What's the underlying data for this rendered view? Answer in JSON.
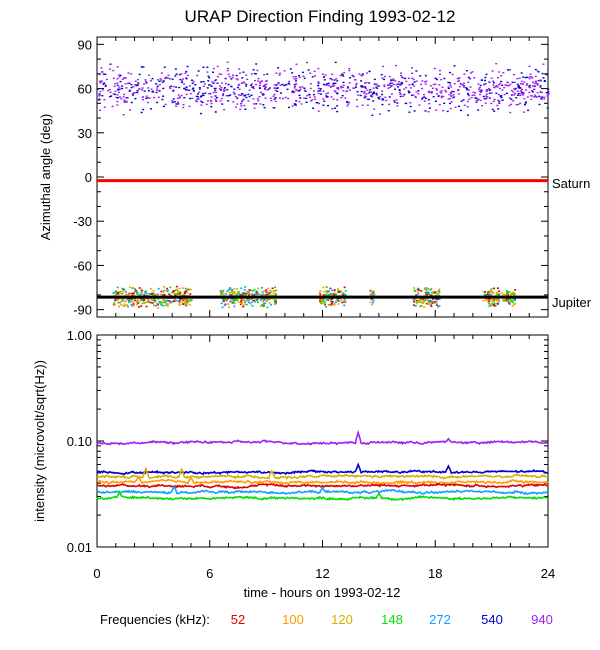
{
  "title": "URAP Direction Finding  1993-02-12",
  "chart_data": [
    {
      "name": "azimuth",
      "type": "scatter",
      "ylabel": "Azimuthal angle (deg)",
      "ylim": [
        -95,
        95
      ],
      "xlim": [
        0,
        24
      ],
      "yticks": [
        {
          "v": 90,
          "label": "90"
        },
        {
          "v": 60,
          "label": "60"
        },
        {
          "v": 30,
          "label": "30"
        },
        {
          "v": 0,
          "label": "0"
        },
        {
          "v": -30,
          "label": "-30"
        },
        {
          "v": -60,
          "label": "-60"
        },
        {
          "v": -90,
          "label": "-90"
        }
      ],
      "reference_lines": [
        {
          "label": "Saturn",
          "value": -2.5,
          "color": "#ff0000"
        },
        {
          "label": "Jupiter",
          "value": -81.5,
          "color": "#000000"
        }
      ],
      "clusters": [
        {
          "description": "dense band of points, all hours",
          "x_range": [
            0,
            24
          ],
          "y_center": 60,
          "y_spread": 10,
          "freqs": [
            "540",
            "940"
          ]
        },
        {
          "description": "sparse points near Jupiter direction",
          "x_ranges": [
            [
              0.8,
              5
            ],
            [
              6.5,
              9.5
            ],
            [
              11.8,
              13.2
            ],
            [
              14.5,
              14.7
            ],
            [
              16.8,
              18.2
            ],
            [
              20.5,
              22.2
            ]
          ],
          "y_center": -81,
          "y_spread": 5,
          "freqs": [
            "52",
            "100",
            "120",
            "148",
            "272"
          ]
        }
      ]
    },
    {
      "name": "intensity",
      "type": "line",
      "ylabel": "intensity (microvolt/sqrt(Hz))",
      "yscale": "log",
      "ylim": [
        0.01,
        1.0
      ],
      "xlim": [
        0,
        24
      ],
      "yticks": [
        {
          "v": 1.0,
          "label": "1.00"
        },
        {
          "v": 0.1,
          "label": "0.10"
        },
        {
          "v": 0.01,
          "label": "0.01"
        }
      ],
      "series": [
        {
          "name": "940",
          "color": "#a020f0",
          "base": 0.097,
          "spikes": [
            [
              13.9,
              0.12
            ],
            [
              18.7,
              0.105
            ]
          ]
        },
        {
          "name": "540",
          "color": "#0000d0",
          "base": 0.051,
          "spikes": [
            [
              13.9,
              0.06
            ],
            [
              18.7,
              0.058
            ]
          ]
        },
        {
          "name": "120",
          "color": "#d4b000",
          "base": 0.046,
          "spikes": [
            [
              2.6,
              0.055
            ],
            [
              4.5,
              0.054
            ],
            [
              9.3,
              0.052
            ]
          ]
        },
        {
          "name": "100",
          "color": "#ff9a00",
          "base": 0.041,
          "spikes": [
            [
              2.2,
              0.046
            ],
            [
              5.0,
              0.045
            ]
          ]
        },
        {
          "name": "52",
          "color": "#e00000",
          "base": 0.038,
          "spikes": []
        },
        {
          "name": "272",
          "color": "#10a0ff",
          "base": 0.033,
          "spikes": [
            [
              4.1,
              0.037
            ],
            [
              12.0,
              0.036
            ]
          ]
        },
        {
          "name": "148",
          "color": "#00e000",
          "base": 0.029,
          "spikes": [
            [
              1.2,
              0.033
            ],
            [
              15.0,
              0.032
            ]
          ]
        }
      ]
    }
  ],
  "xaxis": {
    "label": "time - hours on 1993-02-12",
    "ticks": [
      {
        "v": 0,
        "label": "0"
      },
      {
        "v": 6,
        "label": "6"
      },
      {
        "v": 12,
        "label": "12"
      },
      {
        "v": 18,
        "label": "18"
      },
      {
        "v": 24,
        "label": "24"
      }
    ]
  },
  "legend": {
    "label": "Frequencies (kHz):",
    "items": [
      {
        "name": "52",
        "color": "#e00000"
      },
      {
        "name": "100",
        "color": "#ff9a00"
      },
      {
        "name": "120",
        "color": "#d4b000"
      },
      {
        "name": "148",
        "color": "#00e000"
      },
      {
        "name": "272",
        "color": "#10a0ff"
      },
      {
        "name": "540",
        "color": "#0000d0"
      },
      {
        "name": "940",
        "color": "#a020f0"
      }
    ]
  }
}
